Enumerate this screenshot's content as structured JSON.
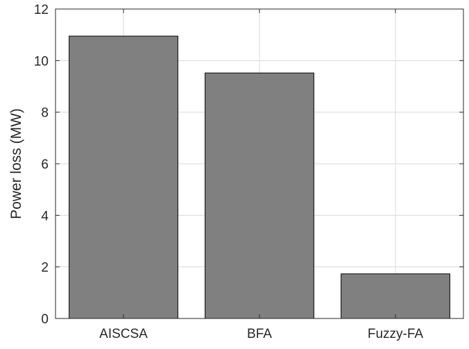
{
  "chart_data": {
    "type": "bar",
    "title": "",
    "xlabel": "",
    "ylabel": "Power loss (MW)",
    "categories": [
      "AISCSA",
      "BFA",
      "Fuzzy-FA"
    ],
    "values": [
      10.95,
      9.52,
      1.73
    ],
    "ylim": [
      0,
      12
    ],
    "yticks": [
      "0",
      "2",
      "4",
      "6",
      "8",
      "10",
      "12"
    ],
    "grid": true,
    "bar_color": "#808080",
    "bar_edge_color": "#000000",
    "grid_color": "#d9d9d9"
  }
}
